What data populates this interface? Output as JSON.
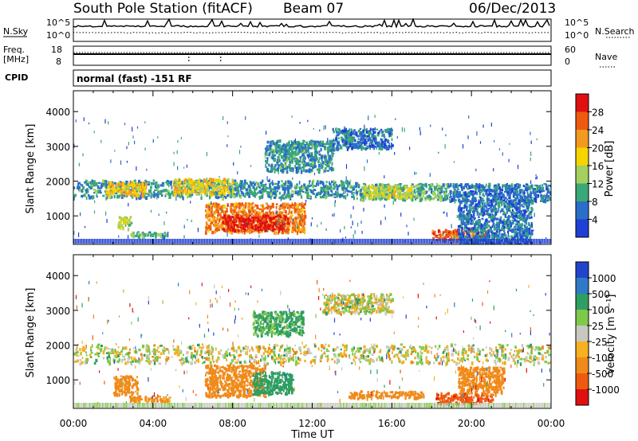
{
  "header": {
    "station": "South Pole Station (fitACF)",
    "beam": "Beam 07",
    "date": "06/Dec/2013"
  },
  "strips": {
    "nsky_label": "N.Sky",
    "nsearch_label": "N.Search",
    "freq_label_1": "Freq.",
    "freq_label_2": "[MHz]",
    "nave_label": "Nave",
    "cpid_label": "CPID",
    "cpid_text": "normal (fast) -151 RF",
    "noise_left_ticks": [
      "10^5",
      "10^0"
    ],
    "noise_right_ticks": [
      "10^5",
      "10^0"
    ],
    "freq_left_ticks": [
      "18",
      "8"
    ],
    "freq_right_ticks": [
      "60",
      "0"
    ]
  },
  "colors": {
    "power": [
      "#1f3fd6",
      "#2a6ec9",
      "#3aa878",
      "#a4d060",
      "#f6d400",
      "#f29a20",
      "#ee5a10",
      "#e01010"
    ],
    "velocity": [
      "#2244cc",
      "#2f7ac8",
      "#2e9e62",
      "#7fc94a",
      "#c8c8c0",
      "#f6b020",
      "#f08a1a",
      "#ee5a10",
      "#e01010"
    ]
  },
  "chart_data": [
    {
      "type": "heatmap",
      "quantity": "Power",
      "xlabel": "",
      "ylabel": "Slant Range [km]",
      "xlim": [
        "00:00",
        "24:00"
      ],
      "ylim": [
        180,
        4600
      ],
      "y_ticks": [
        "1000",
        "2000",
        "3000",
        "4000"
      ],
      "colorbar": {
        "label": "Power [dB]",
        "ticks": [
          "4",
          "8",
          "12",
          "16",
          "20",
          "24",
          "28"
        ],
        "range": [
          0,
          30
        ]
      },
      "regions": [
        {
          "t_start": 0.0,
          "t_end": 14.2,
          "range_km": [
            1550,
            2050
          ],
          "level_db": 8
        },
        {
          "t_start": 14.2,
          "t_end": 18.8,
          "range_km": [
            1500,
            1950
          ],
          "level_db": 10
        },
        {
          "t_start": 18.8,
          "t_end": 24.0,
          "range_km": [
            1450,
            1950
          ],
          "level_db": 6
        },
        {
          "t_start": 1.6,
          "t_end": 3.6,
          "range_km": [
            1600,
            2000
          ],
          "level_db": 18
        },
        {
          "t_start": 5.0,
          "t_end": 8.0,
          "range_km": [
            1650,
            2100
          ],
          "level_db": 17
        },
        {
          "t_start": 14.5,
          "t_end": 17.0,
          "range_km": [
            1550,
            1900
          ],
          "level_db": 15
        },
        {
          "t_start": 2.2,
          "t_end": 2.9,
          "range_km": [
            650,
            1000
          ],
          "level_db": 14
        },
        {
          "t_start": 2.8,
          "t_end": 4.8,
          "range_km": [
            420,
            560
          ],
          "level_db": 10
        },
        {
          "t_start": 6.6,
          "t_end": 11.6,
          "range_km": [
            550,
            1400
          ],
          "level_db": 22
        },
        {
          "t_start": 7.4,
          "t_end": 10.8,
          "range_km": [
            600,
            1050
          ],
          "level_db": 28
        },
        {
          "t_start": 9.6,
          "t_end": 13.0,
          "range_km": [
            2300,
            3200
          ],
          "level_db": 8
        },
        {
          "t_start": 13.0,
          "t_end": 16.0,
          "range_km": [
            2950,
            3550
          ],
          "level_db": 6
        },
        {
          "t_start": 18.0,
          "t_end": 20.8,
          "range_km": [
            330,
            650
          ],
          "level_db": 24
        },
        {
          "t_start": 19.3,
          "t_end": 23.0,
          "range_km": [
            200,
            1500
          ],
          "level_db": 6
        }
      ]
    },
    {
      "type": "heatmap",
      "quantity": "Velocity",
      "xlabel": "Time UT",
      "ylabel": "Slant Range [km]",
      "xlim": [
        "00:00",
        "24:00"
      ],
      "ylim": [
        180,
        4600
      ],
      "x_ticks": [
        "00:00",
        "04:00",
        "08:00",
        "12:00",
        "16:00",
        "20:00",
        "00:00"
      ],
      "y_ticks": [
        "1000",
        "2000",
        "3000",
        "4000"
      ],
      "colorbar": {
        "label": "Velocity [m s⁻¹]",
        "ticks": [
          "1000",
          "500",
          "100",
          "25",
          "-25",
          "-100",
          "-500",
          "-1000"
        ]
      },
      "regions": [
        {
          "t_start": 0.0,
          "t_end": 24.0,
          "range_km": [
            1500,
            2050
          ],
          "velocity_ms": 0
        },
        {
          "t_start": 2.0,
          "t_end": 3.2,
          "range_km": [
            600,
            1150
          ],
          "velocity_ms": -300
        },
        {
          "t_start": 2.8,
          "t_end": 4.8,
          "range_km": [
            400,
            560
          ],
          "velocity_ms": -200
        },
        {
          "t_start": 6.6,
          "t_end": 9.6,
          "range_km": [
            550,
            1450
          ],
          "velocity_ms": -300
        },
        {
          "t_start": 9.0,
          "t_end": 11.0,
          "range_km": [
            600,
            1250
          ],
          "velocity_ms": 300
        },
        {
          "t_start": 9.0,
          "t_end": 11.5,
          "range_km": [
            2300,
            3000
          ],
          "velocity_ms": 150
        },
        {
          "t_start": 12.5,
          "t_end": 16.0,
          "range_km": [
            2950,
            3500
          ],
          "velocity_ms": 0
        },
        {
          "t_start": 13.8,
          "t_end": 17.6,
          "range_km": [
            500,
            700
          ],
          "velocity_ms": -300
        },
        {
          "t_start": 18.2,
          "t_end": 21.0,
          "range_km": [
            350,
            650
          ],
          "velocity_ms": -900
        },
        {
          "t_start": 19.3,
          "t_end": 21.6,
          "range_km": [
            600,
            1400
          ],
          "velocity_ms": -300
        }
      ]
    }
  ]
}
